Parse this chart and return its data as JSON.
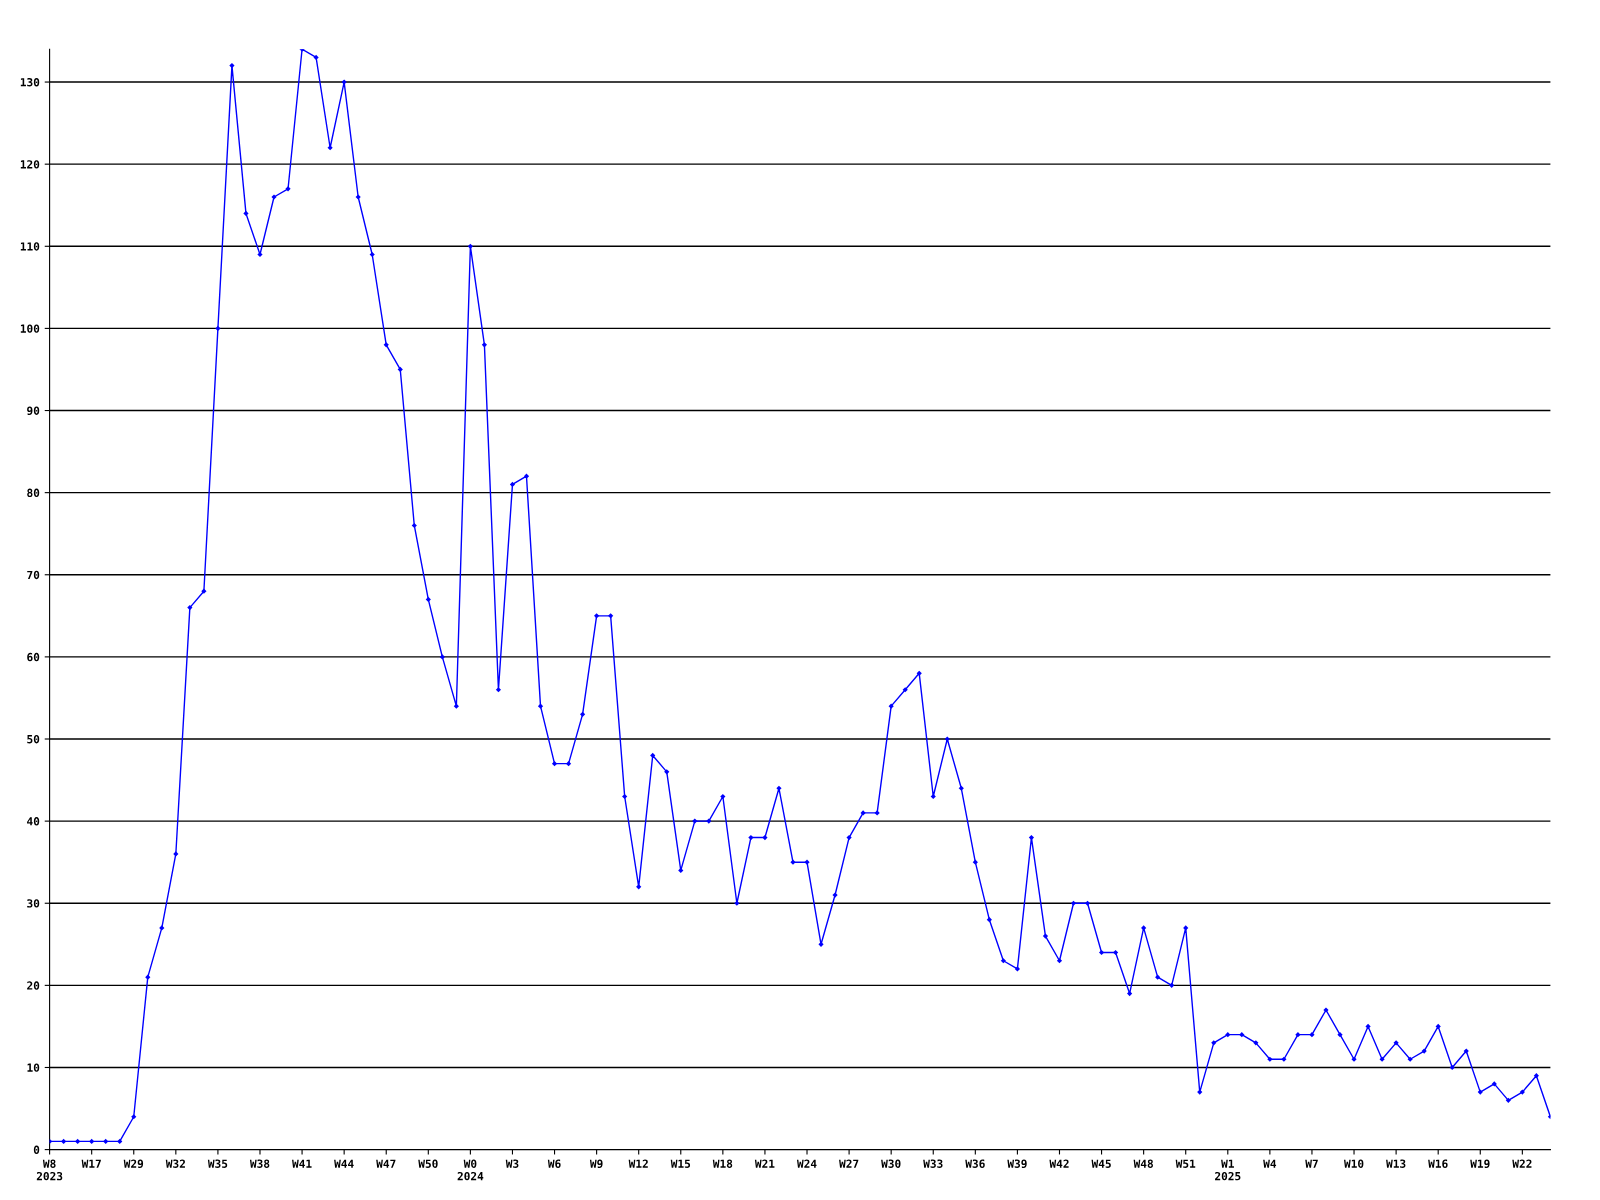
{
  "chart_data": {
    "type": "line",
    "categories": [
      "W8\n2023",
      null,
      null,
      "W17",
      null,
      null,
      "W29",
      null,
      null,
      "W32",
      null,
      null,
      "W35",
      null,
      null,
      "W38",
      null,
      null,
      "W41",
      null,
      null,
      "W44",
      null,
      null,
      "W47",
      null,
      null,
      "W50",
      null,
      null,
      "W0\n2024",
      null,
      null,
      "W3",
      null,
      null,
      "W6",
      null,
      null,
      "W9",
      null,
      null,
      "W12",
      null,
      null,
      "W15",
      null,
      null,
      "W18",
      null,
      null,
      "W21",
      null,
      null,
      "W24",
      null,
      null,
      "W27",
      null,
      null,
      "W30",
      null,
      null,
      "W33",
      null,
      null,
      "W36",
      null,
      null,
      "W39",
      null,
      null,
      "W42",
      null,
      null,
      "W45",
      null,
      null,
      "W48",
      null,
      null,
      "W51",
      null,
      null,
      "W1\n2025",
      null,
      null,
      "W4",
      null,
      null,
      "W7",
      null,
      null,
      "W10",
      null,
      null,
      "W13",
      null,
      null,
      "W16",
      null,
      null,
      "W19",
      null,
      null,
      "W22",
      null,
      null
    ],
    "series": [
      {
        "color": "#0000ff",
        "values": [
          1,
          1,
          1,
          1,
          1,
          1,
          4,
          21,
          27,
          36,
          66,
          68,
          100,
          132,
          114,
          109,
          116,
          117,
          134,
          133,
          122,
          130,
          116,
          109,
          98,
          95,
          76,
          67,
          60,
          54,
          110,
          98,
          56,
          81,
          82,
          54,
          47,
          47,
          53,
          65,
          65,
          43,
          32,
          48,
          46,
          34,
          40,
          40,
          43,
          30,
          38,
          38,
          44,
          35,
          35,
          25,
          31,
          38,
          41,
          41,
          54,
          56,
          58,
          43,
          50,
          44,
          35,
          28,
          23,
          22,
          38,
          26,
          23,
          30,
          30,
          24,
          24,
          19,
          27,
          21,
          20,
          27,
          7,
          13,
          14,
          14,
          13,
          11,
          11,
          14,
          14,
          17,
          14,
          11,
          15,
          11,
          13,
          11,
          12,
          15,
          10,
          12,
          7,
          8,
          6,
          7,
          9,
          4
        ]
      }
    ],
    "ylim": [
      0,
      134
    ],
    "yticks": [
      0,
      10,
      20,
      30,
      40,
      50,
      60,
      70,
      80,
      90,
      100,
      110,
      120,
      130
    ],
    "grid": "y",
    "marker": "diamond",
    "line_style": "solid",
    "legend": false
  }
}
